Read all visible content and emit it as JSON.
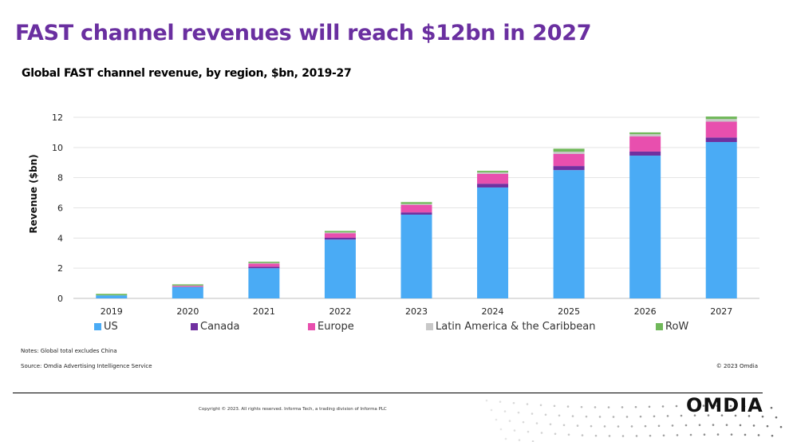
{
  "header": {
    "title": "FAST channel revenues will reach $12bn in 2027",
    "subtitle": "Global FAST channel revenue, by region, $bn, 2019-27"
  },
  "colors": {
    "title": "#6a2fa0",
    "US": "#4aabf5",
    "Canada": "#7030a0",
    "Europe": "#e84fae",
    "Latin America & the Caribbean": "#c8c8c8",
    "RoW": "#70b85a"
  },
  "chart_data": {
    "type": "bar",
    "stacked": true,
    "title": "Global FAST channel revenue, by region, $bn, 2019-27",
    "xlabel": "",
    "ylabel": "Revenue ($bn)",
    "ylim": [
      0,
      12
    ],
    "yticks": [
      0,
      2,
      4,
      6,
      8,
      10,
      12
    ],
    "grid": true,
    "legend_position": "bottom",
    "categories": [
      "2019",
      "2020",
      "2021",
      "2022",
      "2023",
      "2024",
      "2025",
      "2026",
      "2027"
    ],
    "series": [
      {
        "name": "US",
        "color": "#4aabf5",
        "values": [
          0.2,
          0.75,
          2.0,
          3.9,
          5.55,
          7.35,
          8.5,
          9.46,
          10.36
        ]
      },
      {
        "name": "Canada",
        "color": "#7030a0",
        "values": [
          0.0,
          0.03,
          0.1,
          0.12,
          0.15,
          0.25,
          0.27,
          0.27,
          0.3
        ]
      },
      {
        "name": "Europe",
        "color": "#e84fae",
        "values": [
          0.0,
          0.05,
          0.2,
          0.3,
          0.5,
          0.65,
          0.8,
          1.0,
          1.05
        ]
      },
      {
        "name": "Latin America & the Caribbean",
        "color": "#c8c8c8",
        "values": [
          0.0,
          0.02,
          0.05,
          0.05,
          0.06,
          0.1,
          0.15,
          0.15,
          0.17
        ]
      },
      {
        "name": "RoW",
        "color": "#70b85a",
        "values": [
          0.1,
          0.08,
          0.08,
          0.1,
          0.12,
          0.1,
          0.2,
          0.12,
          0.17
        ]
      }
    ]
  },
  "notes": "Notes: Global total excludes China",
  "source": "Source: Omdia Advertising Intelligence Service",
  "copyright_omdia": "© 2023 Omdia",
  "footer": "Copyright © 2023. All rights reserved. Informa Tech, a trading division of Informa PLC",
  "logo": "OMDIA"
}
